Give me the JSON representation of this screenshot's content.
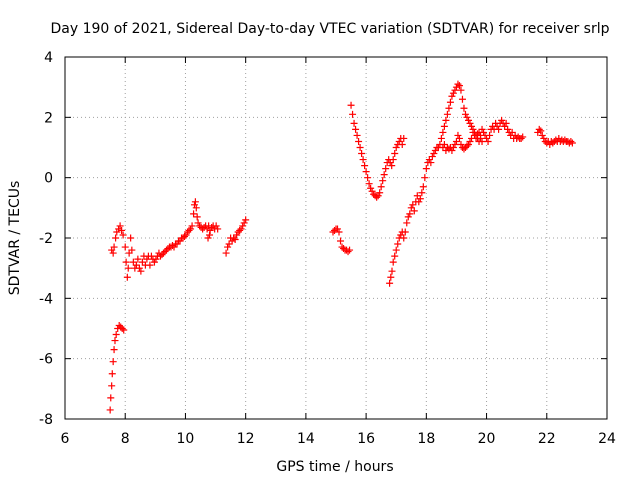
{
  "chart_data": {
    "type": "scatter",
    "title": "Day 190 of 2021, Sidereal Day-to-day VTEC variation (SDTVAR) for receiver srlp",
    "xlabel": "GPS time / hours",
    "ylabel": "SDTVAR / TECUs",
    "xlim": [
      6,
      24
    ],
    "ylim": [
      -8,
      4
    ],
    "xticks": [
      6,
      8,
      10,
      12,
      14,
      16,
      18,
      20,
      22,
      24
    ],
    "yticks": [
      -8,
      -6,
      -4,
      -2,
      0,
      2,
      4
    ],
    "xtick_labels": [
      "6",
      "8",
      "10",
      "12",
      "14",
      "16",
      "18",
      "20",
      "22",
      "24"
    ],
    "ytick_labels": [
      "-8",
      "-6",
      "-4",
      "-2",
      "0",
      "2",
      "4"
    ],
    "grid": true,
    "marker": "+",
    "color": "#ff0000",
    "series": [
      {
        "name": "SDTVAR",
        "points": [
          [
            7.5,
            -7.7
          ],
          [
            7.52,
            -7.3
          ],
          [
            7.55,
            -6.9
          ],
          [
            7.57,
            -6.5
          ],
          [
            7.6,
            -6.1
          ],
          [
            7.63,
            -5.7
          ],
          [
            7.66,
            -5.4
          ],
          [
            7.7,
            -5.2
          ],
          [
            7.75,
            -5.0
          ],
          [
            7.8,
            -4.9
          ],
          [
            7.85,
            -4.95
          ],
          [
            7.9,
            -5.0
          ],
          [
            7.95,
            -5.05
          ],
          [
            7.55,
            -2.4
          ],
          [
            7.6,
            -2.5
          ],
          [
            7.63,
            -2.3
          ],
          [
            7.68,
            -2.0
          ],
          [
            7.72,
            -1.8
          ],
          [
            7.78,
            -1.7
          ],
          [
            7.83,
            -1.6
          ],
          [
            7.88,
            -1.75
          ],
          [
            7.93,
            -1.9
          ],
          [
            8.0,
            -2.3
          ],
          [
            8.03,
            -2.8
          ],
          [
            8.07,
            -3.3
          ],
          [
            8.1,
            -3.0
          ],
          [
            8.13,
            -2.5
          ],
          [
            8.18,
            -2.0
          ],
          [
            8.22,
            -2.4
          ],
          [
            8.27,
            -2.8
          ],
          [
            8.32,
            -3.0
          ],
          [
            8.37,
            -2.9
          ],
          [
            8.42,
            -2.7
          ],
          [
            8.47,
            -3.0
          ],
          [
            8.52,
            -3.1
          ],
          [
            8.57,
            -2.8
          ],
          [
            8.62,
            -2.6
          ],
          [
            8.67,
            -2.9
          ],
          [
            8.72,
            -2.7
          ],
          [
            8.77,
            -2.6
          ],
          [
            8.82,
            -2.9
          ],
          [
            8.87,
            -2.6
          ],
          [
            8.92,
            -2.7
          ],
          [
            8.97,
            -2.8
          ],
          [
            9.02,
            -2.7
          ],
          [
            9.07,
            -2.6
          ],
          [
            9.12,
            -2.5
          ],
          [
            9.17,
            -2.6
          ],
          [
            9.22,
            -2.55
          ],
          [
            9.27,
            -2.5
          ],
          [
            9.32,
            -2.45
          ],
          [
            9.37,
            -2.4
          ],
          [
            9.42,
            -2.35
          ],
          [
            9.47,
            -2.3
          ],
          [
            9.52,
            -2.3
          ],
          [
            9.57,
            -2.25
          ],
          [
            9.62,
            -2.3
          ],
          [
            9.67,
            -2.2
          ],
          [
            9.72,
            -2.2
          ],
          [
            9.77,
            -2.1
          ],
          [
            9.82,
            -2.1
          ],
          [
            9.87,
            -2.0
          ],
          [
            9.92,
            -2.0
          ],
          [
            9.97,
            -1.95
          ],
          [
            10.02,
            -1.9
          ],
          [
            10.07,
            -1.8
          ],
          [
            10.12,
            -1.75
          ],
          [
            10.17,
            -1.7
          ],
          [
            10.22,
            -1.6
          ],
          [
            10.27,
            -1.2
          ],
          [
            10.3,
            -0.9
          ],
          [
            10.33,
            -0.8
          ],
          [
            10.36,
            -1.0
          ],
          [
            10.39,
            -1.3
          ],
          [
            10.42,
            -1.5
          ],
          [
            10.47,
            -1.6
          ],
          [
            10.52,
            -1.65
          ],
          [
            10.57,
            -1.7
          ],
          [
            10.62,
            -1.65
          ],
          [
            10.67,
            -1.6
          ],
          [
            10.72,
            -1.7
          ],
          [
            10.77,
            -1.6
          ],
          [
            10.82,
            -1.75
          ],
          [
            10.87,
            -1.65
          ],
          [
            10.92,
            -1.6
          ],
          [
            10.97,
            -1.7
          ],
          [
            11.02,
            -1.6
          ],
          [
            11.07,
            -1.7
          ],
          [
            10.75,
            -2.0
          ],
          [
            10.8,
            -1.9
          ],
          [
            11.35,
            -2.5
          ],
          [
            11.4,
            -2.3
          ],
          [
            11.45,
            -2.2
          ],
          [
            11.5,
            -2.0
          ],
          [
            11.55,
            -2.1
          ],
          [
            11.6,
            -2.0
          ],
          [
            11.65,
            -2.05
          ],
          [
            11.7,
            -1.9
          ],
          [
            11.75,
            -1.8
          ],
          [
            11.8,
            -1.75
          ],
          [
            11.85,
            -1.7
          ],
          [
            11.9,
            -1.6
          ],
          [
            11.95,
            -1.5
          ],
          [
            12.0,
            -1.4
          ],
          [
            14.9,
            -1.8
          ],
          [
            14.95,
            -1.75
          ],
          [
            15.0,
            -1.7
          ],
          [
            15.05,
            -1.7
          ],
          [
            15.1,
            -1.8
          ],
          [
            15.15,
            -2.1
          ],
          [
            15.2,
            -2.3
          ],
          [
            15.25,
            -2.35
          ],
          [
            15.3,
            -2.4
          ],
          [
            15.35,
            -2.4
          ],
          [
            15.4,
            -2.45
          ],
          [
            15.45,
            -2.4
          ],
          [
            15.5,
            2.4
          ],
          [
            15.55,
            2.1
          ],
          [
            15.6,
            1.8
          ],
          [
            15.65,
            1.6
          ],
          [
            15.7,
            1.4
          ],
          [
            15.75,
            1.2
          ],
          [
            15.8,
            1.0
          ],
          [
            15.85,
            0.8
          ],
          [
            15.9,
            0.6
          ],
          [
            15.95,
            0.4
          ],
          [
            16.0,
            0.2
          ],
          [
            16.05,
            0.0
          ],
          [
            16.1,
            -0.2
          ],
          [
            16.15,
            -0.35
          ],
          [
            16.2,
            -0.45
          ],
          [
            16.25,
            -0.55
          ],
          [
            16.3,
            -0.6
          ],
          [
            16.35,
            -0.65
          ],
          [
            16.4,
            -0.6
          ],
          [
            16.45,
            -0.5
          ],
          [
            16.5,
            -0.3
          ],
          [
            16.55,
            -0.1
          ],
          [
            16.6,
            0.1
          ],
          [
            16.65,
            0.3
          ],
          [
            16.7,
            0.5
          ],
          [
            16.75,
            0.6
          ],
          [
            16.8,
            0.5
          ],
          [
            16.85,
            0.4
          ],
          [
            16.9,
            0.6
          ],
          [
            16.95,
            0.8
          ],
          [
            17.0,
            1.0
          ],
          [
            17.05,
            1.1
          ],
          [
            17.1,
            1.2
          ],
          [
            17.15,
            1.3
          ],
          [
            17.2,
            1.1
          ],
          [
            17.25,
            1.3
          ],
          [
            16.78,
            -3.5
          ],
          [
            16.82,
            -3.3
          ],
          [
            16.86,
            -3.1
          ],
          [
            16.9,
            -2.8
          ],
          [
            16.95,
            -2.6
          ],
          [
            17.0,
            -2.4
          ],
          [
            17.05,
            -2.2
          ],
          [
            17.1,
            -2.0
          ],
          [
            17.15,
            -1.9
          ],
          [
            17.2,
            -1.8
          ],
          [
            17.25,
            -2.0
          ],
          [
            17.3,
            -1.8
          ],
          [
            17.35,
            -1.5
          ],
          [
            17.4,
            -1.3
          ],
          [
            17.45,
            -1.2
          ],
          [
            17.5,
            -1.0
          ],
          [
            17.55,
            -0.9
          ],
          [
            17.6,
            -1.1
          ],
          [
            17.65,
            -0.8
          ],
          [
            17.7,
            -0.6
          ],
          [
            17.75,
            -0.8
          ],
          [
            17.8,
            -0.7
          ],
          [
            17.85,
            -0.5
          ],
          [
            17.9,
            -0.3
          ],
          [
            17.95,
            0.0
          ],
          [
            18.0,
            0.3
          ],
          [
            18.05,
            0.5
          ],
          [
            18.1,
            0.6
          ],
          [
            18.15,
            0.5
          ],
          [
            18.2,
            0.7
          ],
          [
            18.25,
            0.8
          ],
          [
            18.3,
            0.9
          ],
          [
            18.35,
            1.0
          ],
          [
            18.4,
            1.0
          ],
          [
            18.45,
            1.1
          ],
          [
            18.5,
            1.3
          ],
          [
            18.55,
            1.5
          ],
          [
            18.6,
            1.7
          ],
          [
            18.65,
            1.9
          ],
          [
            18.7,
            2.1
          ],
          [
            18.75,
            2.3
          ],
          [
            18.8,
            2.5
          ],
          [
            18.85,
            2.7
          ],
          [
            18.9,
            2.8
          ],
          [
            18.95,
            2.9
          ],
          [
            19.0,
            3.0
          ],
          [
            19.05,
            3.1
          ],
          [
            19.1,
            3.05
          ],
          [
            19.15,
            2.9
          ],
          [
            19.2,
            2.6
          ],
          [
            19.25,
            2.3
          ],
          [
            19.3,
            2.1
          ],
          [
            19.35,
            2.0
          ],
          [
            19.4,
            1.9
          ],
          [
            19.45,
            1.8
          ],
          [
            19.5,
            1.7
          ],
          [
            19.55,
            1.6
          ],
          [
            19.6,
            1.5
          ],
          [
            19.65,
            1.4
          ],
          [
            19.7,
            1.3
          ],
          [
            19.75,
            1.2
          ],
          [
            19.8,
            1.3
          ],
          [
            19.85,
            1.2
          ],
          [
            18.55,
            1.0
          ],
          [
            18.6,
            1.1
          ],
          [
            18.65,
            0.9
          ],
          [
            18.7,
            1.0
          ],
          [
            18.75,
            0.95
          ],
          [
            18.8,
            1.0
          ],
          [
            18.85,
            0.9
          ],
          [
            18.9,
            1.0
          ],
          [
            18.95,
            1.1
          ],
          [
            19.0,
            1.2
          ],
          [
            19.05,
            1.4
          ],
          [
            19.1,
            1.3
          ],
          [
            19.15,
            1.1
          ],
          [
            19.2,
            1.0
          ],
          [
            19.25,
            0.95
          ],
          [
            19.3,
            1.0
          ],
          [
            19.35,
            1.05
          ],
          [
            19.4,
            1.1
          ],
          [
            19.45,
            1.2
          ],
          [
            19.5,
            1.3
          ],
          [
            19.55,
            1.5
          ],
          [
            19.6,
            1.4
          ],
          [
            19.65,
            1.3
          ],
          [
            19.7,
            1.45
          ],
          [
            19.75,
            1.5
          ],
          [
            19.8,
            1.4
          ],
          [
            19.85,
            1.6
          ],
          [
            19.9,
            1.5
          ],
          [
            19.95,
            1.4
          ],
          [
            20.0,
            1.3
          ],
          [
            20.05,
            1.2
          ],
          [
            20.1,
            1.4
          ],
          [
            20.15,
            1.6
          ],
          [
            20.2,
            1.7
          ],
          [
            20.25,
            1.6
          ],
          [
            20.3,
            1.8
          ],
          [
            20.35,
            1.7
          ],
          [
            20.4,
            1.6
          ],
          [
            20.45,
            1.8
          ],
          [
            20.5,
            1.9
          ],
          [
            20.55,
            1.8
          ],
          [
            20.6,
            1.7
          ],
          [
            20.65,
            1.8
          ],
          [
            20.7,
            1.6
          ],
          [
            20.75,
            1.5
          ],
          [
            20.8,
            1.4
          ],
          [
            20.85,
            1.5
          ],
          [
            20.9,
            1.3
          ],
          [
            20.95,
            1.4
          ],
          [
            21.0,
            1.3
          ],
          [
            21.05,
            1.35
          ],
          [
            21.1,
            1.3
          ],
          [
            21.15,
            1.3
          ],
          [
            21.2,
            1.35
          ],
          [
            21.7,
            1.5
          ],
          [
            21.75,
            1.6
          ],
          [
            21.8,
            1.55
          ],
          [
            21.85,
            1.4
          ],
          [
            21.9,
            1.3
          ],
          [
            21.95,
            1.2
          ],
          [
            22.0,
            1.15
          ],
          [
            22.05,
            1.2
          ],
          [
            22.1,
            1.1
          ],
          [
            22.15,
            1.2
          ],
          [
            22.2,
            1.15
          ],
          [
            22.25,
            1.2
          ],
          [
            22.3,
            1.25
          ],
          [
            22.35,
            1.2
          ],
          [
            22.4,
            1.3
          ],
          [
            22.45,
            1.2
          ],
          [
            22.5,
            1.25
          ],
          [
            22.55,
            1.2
          ],
          [
            22.6,
            1.25
          ],
          [
            22.65,
            1.2
          ],
          [
            22.7,
            1.2
          ],
          [
            22.75,
            1.15
          ],
          [
            22.8,
            1.2
          ],
          [
            22.85,
            1.15
          ]
        ]
      }
    ]
  }
}
